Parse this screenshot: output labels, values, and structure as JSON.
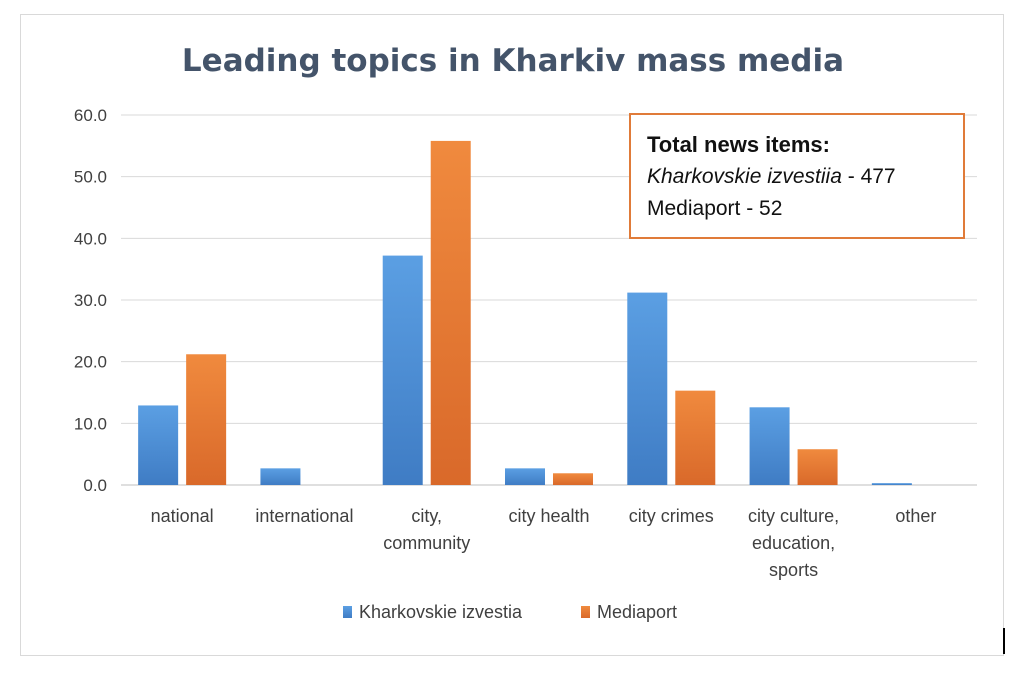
{
  "chart_data": {
    "type": "bar",
    "title": "Leading topics in Kharkiv mass media",
    "categories": [
      [
        "national"
      ],
      [
        "international"
      ],
      [
        "city,",
        "community"
      ],
      [
        "city health"
      ],
      [
        "city crimes"
      ],
      [
        "city culture,",
        "education,",
        "sports"
      ],
      [
        "other"
      ]
    ],
    "series": [
      {
        "name": "Kharkovskie izvestia",
        "values": [
          12.9,
          2.7,
          37.2,
          2.7,
          31.2,
          12.6,
          0.3
        ],
        "color": "#4a90d9"
      },
      {
        "name": "Mediaport",
        "values": [
          21.2,
          0,
          55.8,
          1.9,
          15.3,
          5.8,
          0
        ],
        "color": "#ed7d31"
      }
    ],
    "yticks": [
      "0.0",
      "10.0",
      "20.0",
      "30.0",
      "40.0",
      "50.0",
      "60.0"
    ],
    "ylim": [
      0,
      60
    ],
    "grid": true,
    "legend_position": "bottom"
  },
  "note": {
    "heading": "Total news items:",
    "line1_italic": "Kharkovskie izvestiia",
    "line1_rest": " - 477",
    "line2": "Mediaport - 52"
  }
}
